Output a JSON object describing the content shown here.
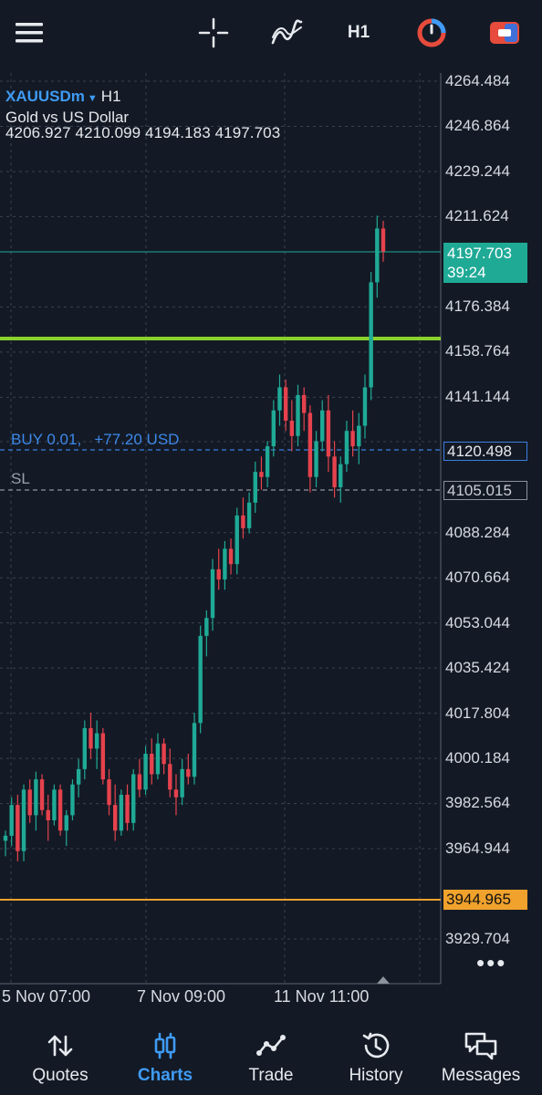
{
  "toolbar": {
    "timeframe": "H1"
  },
  "symbol": {
    "name": "XAUUSDm",
    "timeframe": "H1",
    "description": "Gold vs US Dollar",
    "ohlc": "4206.927 4210.099 4194.183 4197.703"
  },
  "price_scale": [
    "4264.484",
    "4246.864",
    "4229.244",
    "4211.624",
    "4176.384",
    "4158.764",
    "4141.144",
    "4088.284",
    "4070.664",
    "4053.044",
    "4035.424",
    "4017.804",
    "4000.184",
    "3982.564",
    "3964.944",
    "3929.704"
  ],
  "current_price": {
    "price": "4197.703",
    "countdown": "39:24",
    "color": "#1faa96"
  },
  "position": {
    "label": "BUY 0.01,",
    "profit": "+77.20 USD",
    "price": "4120.498",
    "color": "#3d7de0"
  },
  "stop_loss": {
    "label": "SL",
    "price": "4105.015"
  },
  "low_line": {
    "price": "3944.965",
    "color": "#f0a22c"
  },
  "level_line": {
    "color": "#8bd12c"
  },
  "time_axis": [
    "5 Nov 07:00",
    "7 Nov 09:00",
    "11 Nov 11:00"
  ],
  "bottom_nav": [
    {
      "label": "Quotes",
      "icon": "sort-arrows-icon"
    },
    {
      "label": "Charts",
      "icon": "candles-icon",
      "active": true
    },
    {
      "label": "Trade",
      "icon": "trend-icon"
    },
    {
      "label": "History",
      "icon": "history-icon"
    },
    {
      "label": "Messages",
      "icon": "chat-icon"
    }
  ],
  "chart_data": {
    "type": "candlestick",
    "symbol": "XAUUSDm",
    "timeframe": "H1",
    "ylim": [
      3925,
      4272
    ],
    "candles": [
      [
        3968,
        3972,
        3962,
        3970
      ],
      [
        3970,
        3985,
        3966,
        3982
      ],
      [
        3982,
        3986,
        3960,
        3964
      ],
      [
        3964,
        3990,
        3960,
        3988
      ],
      [
        3988,
        3992,
        3975,
        3978
      ],
      [
        3978,
        3995,
        3972,
        3992
      ],
      [
        3992,
        3994,
        3978,
        3980
      ],
      [
        3980,
        3986,
        3968,
        3976
      ],
      [
        3976,
        3990,
        3974,
        3988
      ],
      [
        3988,
        3990,
        3970,
        3972
      ],
      [
        3972,
        3980,
        3966,
        3978
      ],
      [
        3978,
        3992,
        3976,
        3990
      ],
      [
        3990,
        4000,
        3985,
        3996
      ],
      [
        3996,
        4015,
        3992,
        4012
      ],
      [
        4012,
        4018,
        4000,
        4004
      ],
      [
        4004,
        4015,
        3996,
        4010
      ],
      [
        4010,
        4012,
        3990,
        3992
      ],
      [
        3992,
        3996,
        3978,
        3982
      ],
      [
        3982,
        3990,
        3968,
        3972
      ],
      [
        3972,
        3988,
        3970,
        3986
      ],
      [
        3986,
        3990,
        3972,
        3975
      ],
      [
        3975,
        3996,
        3972,
        3994
      ],
      [
        3994,
        4000,
        3985,
        3988
      ],
      [
        3988,
        4005,
        3986,
        4002
      ],
      [
        4002,
        4008,
        3990,
        3994
      ],
      [
        3994,
        4010,
        3992,
        4006
      ],
      [
        4006,
        4008,
        3994,
        3998
      ],
      [
        3998,
        4004,
        3985,
        3988
      ],
      [
        3988,
        3994,
        3978,
        3985
      ],
      [
        3985,
        4000,
        3982,
        3996
      ],
      [
        3996,
        4002,
        3990,
        3993
      ],
      [
        3993,
        4018,
        3990,
        4014
      ],
      [
        4014,
        4052,
        4010,
        4048
      ],
      [
        4048,
        4058,
        4040,
        4055
      ],
      [
        4055,
        4078,
        4050,
        4074
      ],
      [
        4074,
        4082,
        4066,
        4070
      ],
      [
        4070,
        4085,
        4066,
        4082
      ],
      [
        4082,
        4086,
        4072,
        4076
      ],
      [
        4076,
        4098,
        4072,
        4095
      ],
      [
        4095,
        4102,
        4086,
        4090
      ],
      [
        4090,
        4104,
        4088,
        4100
      ],
      [
        4100,
        4116,
        4096,
        4112
      ],
      [
        4112,
        4118,
        4105,
        4110
      ],
      [
        4110,
        4124,
        4106,
        4122
      ],
      [
        4122,
        4140,
        4118,
        4136
      ],
      [
        4136,
        4150,
        4130,
        4145
      ],
      [
        4145,
        4148,
        4128,
        4132
      ],
      [
        4132,
        4140,
        4120,
        4126
      ],
      [
        4126,
        4146,
        4122,
        4142
      ],
      [
        4142,
        4145,
        4128,
        4135
      ],
      [
        4135,
        4138,
        4104,
        4110
      ],
      [
        4110,
        4128,
        4106,
        4124
      ],
      [
        4124,
        4140,
        4120,
        4136
      ],
      [
        4136,
        4142,
        4112,
        4118
      ],
      [
        4118,
        4124,
        4102,
        4106
      ],
      [
        4106,
        4118,
        4100,
        4115
      ],
      [
        4115,
        4132,
        4112,
        4128
      ],
      [
        4128,
        4136,
        4118,
        4122
      ],
      [
        4122,
        4135,
        4115,
        4130
      ],
      [
        4130,
        4150,
        4125,
        4145
      ],
      [
        4145,
        4190,
        4140,
        4186
      ],
      [
        4186,
        4212,
        4180,
        4207
      ],
      [
        4207,
        4210,
        4194,
        4198
      ]
    ]
  }
}
